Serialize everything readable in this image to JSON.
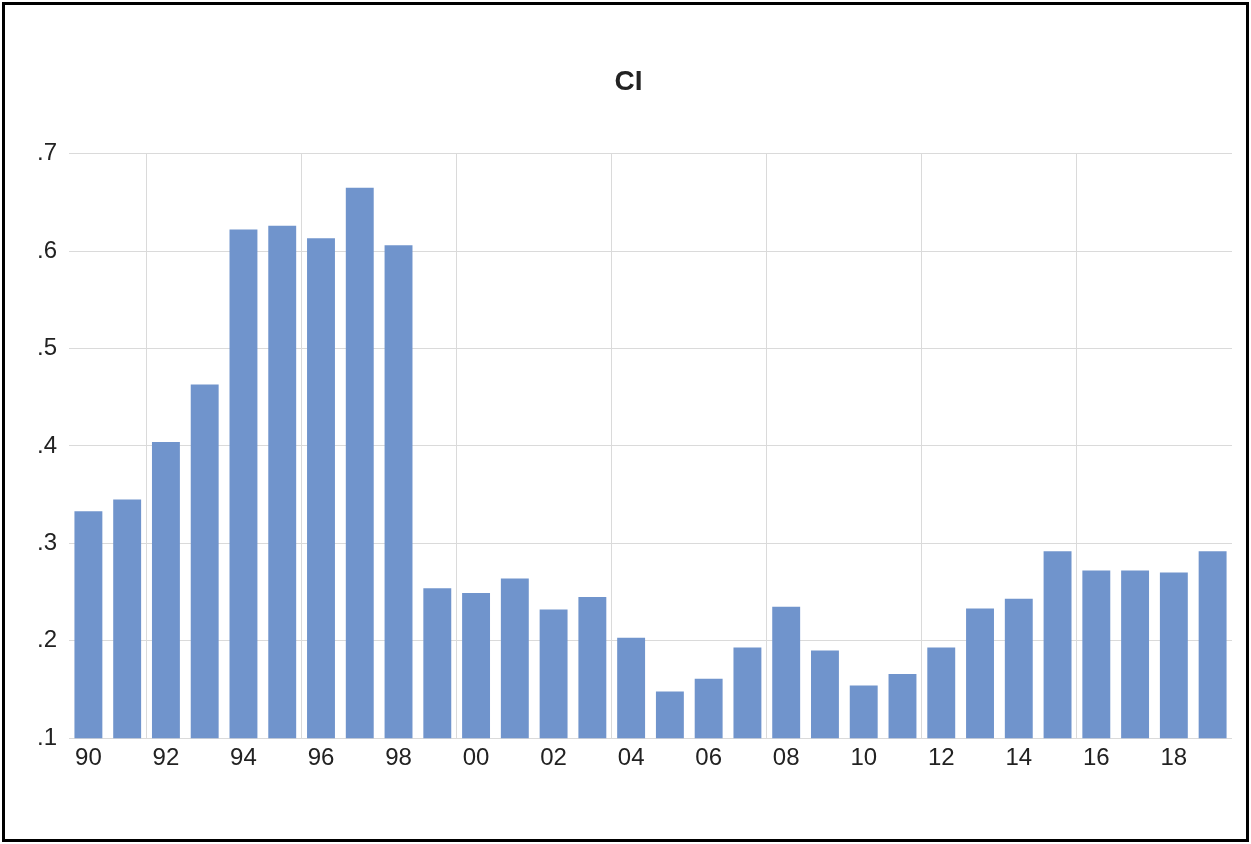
{
  "chart_data": {
    "type": "bar",
    "title": "CI",
    "categories": [
      "90",
      null,
      "92",
      null,
      "94",
      null,
      "96",
      null,
      "98",
      null,
      "00",
      null,
      "02",
      null,
      "04",
      null,
      "06",
      null,
      "08",
      null,
      "10",
      null,
      "12",
      null,
      "14",
      null,
      "16",
      null,
      "18",
      null
    ],
    "values": [
      0.333,
      0.345,
      0.404,
      0.463,
      0.622,
      0.626,
      0.613,
      0.665,
      0.606,
      0.254,
      0.249,
      0.264,
      0.232,
      0.245,
      0.203,
      0.148,
      0.161,
      0.193,
      0.235,
      0.19,
      0.154,
      0.166,
      0.193,
      0.233,
      0.243,
      0.292,
      0.272,
      0.272,
      0.27,
      0.292
    ],
    "color": "#7094cc",
    "ylim": [
      0.1,
      0.7
    ],
    "yticks": [
      {
        "value": 0.1,
        "label": ".1"
      },
      {
        "value": 0.2,
        "label": ".2"
      },
      {
        "value": 0.3,
        "label": ".3"
      },
      {
        "value": 0.4,
        "label": ".4"
      },
      {
        "value": 0.5,
        "label": ".5"
      },
      {
        "value": 0.6,
        "label": ".6"
      },
      {
        "value": 0.7,
        "label": ".7"
      }
    ],
    "grid": true
  }
}
